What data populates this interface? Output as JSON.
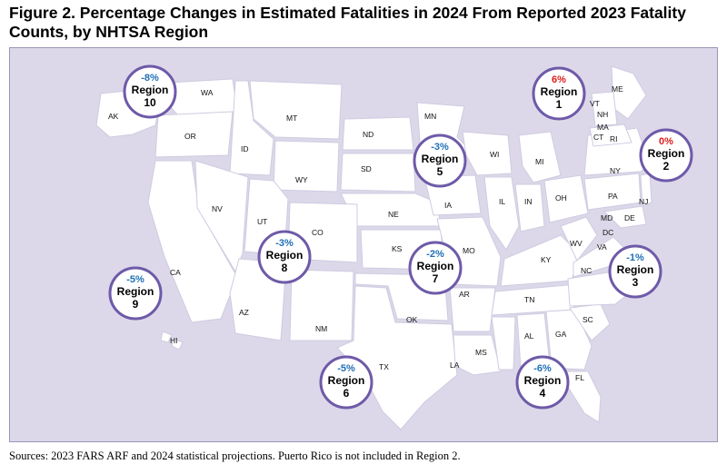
{
  "title": "Figure 2. Percentage Changes in Estimated Fatalities in 2024 From Reported 2023 Fatality Counts, by NHTSA Region",
  "source": "Sources: 2023 FARS ARF and 2024 statistical projections. Puerto Rico is not included in Region 2.",
  "colors": {
    "decrease": "#1f6fb5",
    "increase": "#e01b1b",
    "ring": "#6e5aa8",
    "background": "#dcd8ea"
  },
  "regions": [
    {
      "pct": "-8%",
      "name": "Region",
      "num": "10",
      "trend": "decrease"
    },
    {
      "pct": "6%",
      "name": "Region",
      "num": "1",
      "trend": "increase"
    },
    {
      "pct": "0%",
      "name": "Region",
      "num": "2",
      "trend": "increase"
    },
    {
      "pct": "-3%",
      "name": "Region",
      "num": "5",
      "trend": "decrease"
    },
    {
      "pct": "-3%",
      "name": "Region",
      "num": "8",
      "trend": "decrease"
    },
    {
      "pct": "-2%",
      "name": "Region",
      "num": "7",
      "trend": "decrease"
    },
    {
      "pct": "-1%",
      "name": "Region",
      "num": "3",
      "trend": "decrease"
    },
    {
      "pct": "-5%",
      "name": "Region",
      "num": "9",
      "trend": "decrease"
    },
    {
      "pct": "-5%",
      "name": "Region",
      "num": "6",
      "trend": "decrease"
    },
    {
      "pct": "-6%",
      "name": "Region",
      "num": "4",
      "trend": "decrease"
    }
  ],
  "states": [
    "AK",
    "WA",
    "OR",
    "ID",
    "MT",
    "WY",
    "ND",
    "SD",
    "MN",
    "WI",
    "MI",
    "NE",
    "IA",
    "IL",
    "IN",
    "OH",
    "CA",
    "NV",
    "UT",
    "CO",
    "AZ",
    "NM",
    "KS",
    "MO",
    "OK",
    "TX",
    "AR",
    "LA",
    "MS",
    "TN",
    "KY",
    "AL",
    "GA",
    "SC",
    "NC",
    "FL",
    "VA",
    "WV",
    "PA",
    "NY",
    "NJ",
    "DE",
    "MD",
    "DC",
    "ME",
    "VT",
    "NH",
    "MA",
    "CT",
    "RI",
    "HI"
  ]
}
